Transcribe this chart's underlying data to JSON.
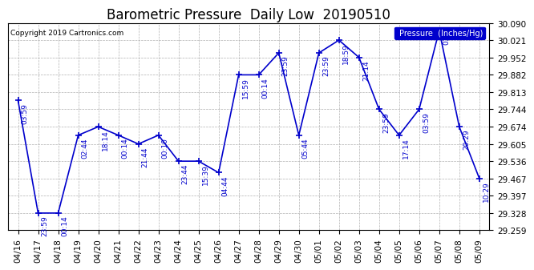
{
  "title": "Barometric Pressure  Daily Low  20190510",
  "copyright": "Copyright 2019 Cartronics.com",
  "legend_label": "Pressure  (Inches/Hg)",
  "line_color": "#0000cc",
  "bg_color": "#ffffff",
  "grid_color": "#b0b0b0",
  "ylim": [
    29.259,
    30.09
  ],
  "yticks": [
    29.259,
    29.328,
    29.397,
    29.467,
    29.536,
    29.605,
    29.674,
    29.744,
    29.813,
    29.882,
    29.952,
    30.021,
    30.09
  ],
  "dates": [
    "04/16",
    "04/17",
    "04/18",
    "04/19",
    "04/20",
    "04/21",
    "04/22",
    "04/23",
    "04/24",
    "04/25",
    "04/26",
    "04/27",
    "04/28",
    "04/29",
    "04/30",
    "05/01",
    "05/02",
    "05/03",
    "05/04",
    "05/05",
    "05/06",
    "05/07",
    "05/08",
    "05/09"
  ],
  "values": [
    29.779,
    29.328,
    29.328,
    29.64,
    29.674,
    29.64,
    29.605,
    29.64,
    29.536,
    29.536,
    29.49,
    29.882,
    29.882,
    29.97,
    29.64,
    29.97,
    30.021,
    29.952,
    29.744,
    29.64,
    29.744,
    30.06,
    29.674,
    29.467
  ],
  "time_labels": [
    "03:59",
    "23:59",
    "00:14",
    "02:44",
    "18:14",
    "00:14",
    "21:44",
    "00:10",
    "23:44",
    "15:39",
    "04:44",
    "15:59",
    "00:14",
    "23:59",
    "05:44",
    "23:59",
    "18:59",
    "21:14",
    "23:59",
    "17:14",
    "03:59",
    "01:",
    "20:29",
    "10:29"
  ],
  "marker_size": 6,
  "line_width": 1.2,
  "title_fontsize": 12,
  "label_fontsize": 6.5,
  "tick_fontsize": 7.5
}
